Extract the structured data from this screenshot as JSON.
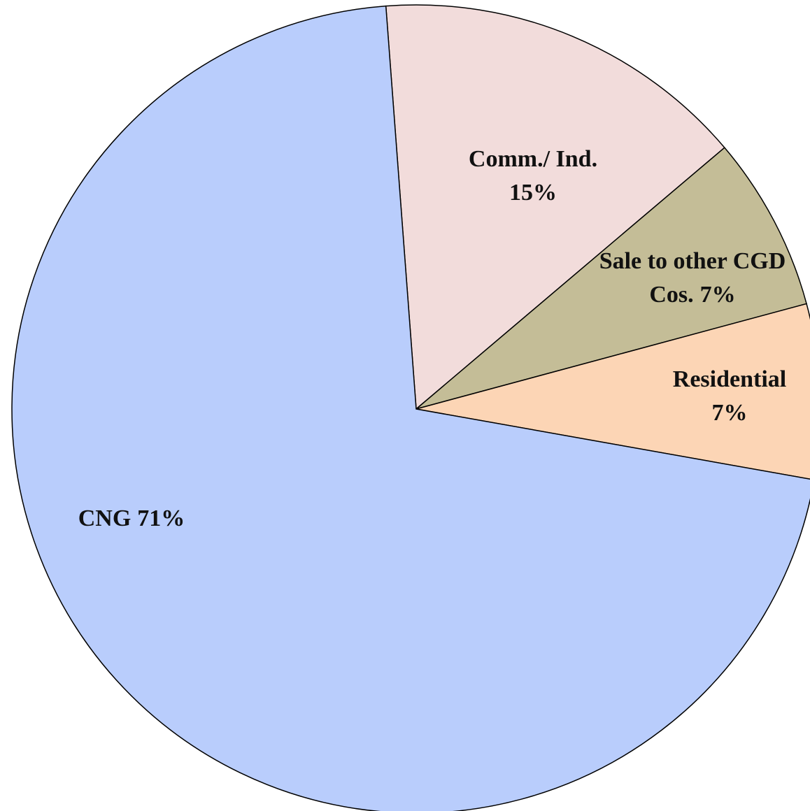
{
  "chart_data": {
    "type": "pie",
    "categories": [
      "Comm./ Ind.",
      "Sale to other CGD Cos.",
      "Residential",
      "CNG"
    ],
    "values": [
      15,
      7,
      7,
      71
    ],
    "value_labels": [
      "15%",
      "7%",
      "7%",
      "71%"
    ],
    "colors": [
      "#f2dcdb",
      "#c4bd97",
      "#fcd5b5",
      "#b9cdfc"
    ]
  }
}
